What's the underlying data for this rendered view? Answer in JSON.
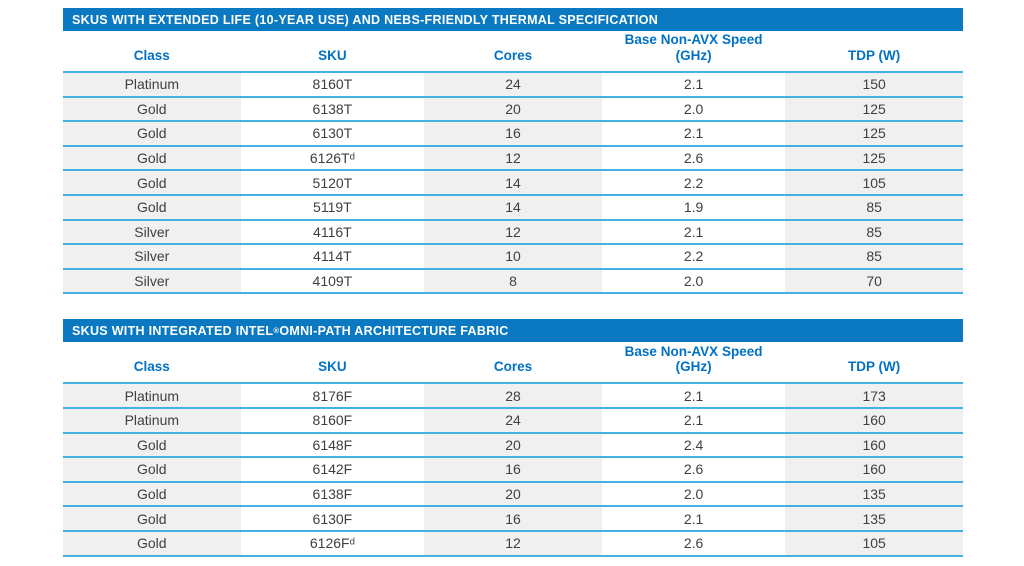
{
  "colors": {
    "banner_bg": "#0b78c2",
    "banner_text": "#ffffff",
    "column_header_text": "#0071c5",
    "row_separator": "#45b1e2",
    "shaded_cell_bg": "#f0f0f0",
    "body_text": "#404040",
    "page_bg": "#ffffff"
  },
  "tables": [
    {
      "title": "SKUS WITH EXTENDED LIFE (10-YEAR USE) AND NEBS-FRIENDLY THERMAL SPECIFICATION",
      "columns": {
        "class": "Class",
        "sku": "SKU",
        "cores": "Cores",
        "speed": "Base Non-AVX Speed (GHz)",
        "tdp": "TDP (W)"
      },
      "rows": [
        {
          "class": "Platinum",
          "sku": "8160T",
          "cores": "24",
          "speed": "2.1",
          "tdp": "150"
        },
        {
          "class": "Gold",
          "sku": "6138T",
          "cores": "20",
          "speed": "2.0",
          "tdp": "125"
        },
        {
          "class": "Gold",
          "sku": "6130T",
          "cores": "16",
          "speed": "2.1",
          "tdp": "125"
        },
        {
          "class": "Gold",
          "sku": "6126Tᵈ",
          "cores": "12",
          "speed": "2.6",
          "tdp": "125"
        },
        {
          "class": "Gold",
          "sku": "5120T",
          "cores": "14",
          "speed": "2.2",
          "tdp": "105"
        },
        {
          "class": "Gold",
          "sku": "5119T",
          "cores": "14",
          "speed": "1.9",
          "tdp": "85"
        },
        {
          "class": "Silver",
          "sku": "4116T",
          "cores": "12",
          "speed": "2.1",
          "tdp": "85"
        },
        {
          "class": "Silver",
          "sku": "4114T",
          "cores": "10",
          "speed": "2.2",
          "tdp": "85"
        },
        {
          "class": "Silver",
          "sku": "4109T",
          "cores": "8",
          "speed": "2.0",
          "tdp": "70"
        }
      ]
    },
    {
      "title": "SKUS WITH INTEGRATED INTEL® OMNI-PATH ARCHITECTURE FABRIC",
      "columns": {
        "class": "Class",
        "sku": "SKU",
        "cores": "Cores",
        "speed": "Base Non-AVX Speed (GHz)",
        "tdp": "TDP (W)"
      },
      "rows": [
        {
          "class": "Platinum",
          "sku": "8176F",
          "cores": "28",
          "speed": "2.1",
          "tdp": "173"
        },
        {
          "class": "Platinum",
          "sku": "8160F",
          "cores": "24",
          "speed": "2.1",
          "tdp": "160"
        },
        {
          "class": "Gold",
          "sku": "6148F",
          "cores": "20",
          "speed": "2.4",
          "tdp": "160"
        },
        {
          "class": "Gold",
          "sku": "6142F",
          "cores": "16",
          "speed": "2.6",
          "tdp": "160"
        },
        {
          "class": "Gold",
          "sku": "6138F",
          "cores": "20",
          "speed": "2.0",
          "tdp": "135"
        },
        {
          "class": "Gold",
          "sku": "6130F",
          "cores": "16",
          "speed": "2.1",
          "tdp": "135"
        },
        {
          "class": "Gold",
          "sku": "6126Fᵈ",
          "cores": "12",
          "speed": "2.6",
          "tdp": "105"
        }
      ]
    }
  ]
}
